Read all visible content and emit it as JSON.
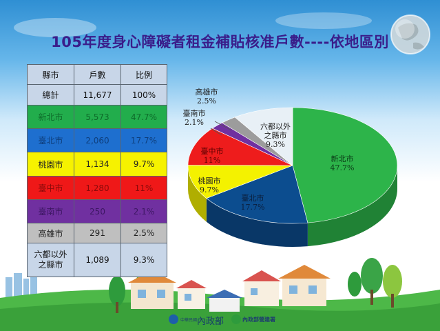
{
  "title": "105年度身心障礙者租金補貼核准戶數----依地區別",
  "table": {
    "headers": [
      "縣市",
      "戶數",
      "比例"
    ],
    "rows": [
      {
        "area": "總計",
        "count": "11,677",
        "pct": "100%"
      },
      {
        "area": "新北市",
        "count": "5,573",
        "pct": "47.7%"
      },
      {
        "area": "臺北市",
        "count": "2,060",
        "pct": "17.7%"
      },
      {
        "area": "桃園市",
        "count": "1,134",
        "pct": "9.7%"
      },
      {
        "area": "臺中市",
        "count": "1,280",
        "pct": "11%"
      },
      {
        "area": "臺南市",
        "count": "250",
        "pct": "2.1%"
      },
      {
        "area": "高雄市",
        "count": "291",
        "pct": "2.5%"
      },
      {
        "area": "六都以外之縣市",
        "area_line1": "六都以外",
        "area_line2": "之縣市",
        "count": "1,089",
        "pct": "9.3%"
      }
    ]
  },
  "chart_data": {
    "type": "pie",
    "title": "",
    "slices": [
      {
        "name": "新北市",
        "value": 47.7,
        "label": "47.7%",
        "color": "#2db44a"
      },
      {
        "name": "臺北市",
        "value": 17.7,
        "label": "17.7%",
        "color": "#0c4d8f"
      },
      {
        "name": "桃園市",
        "value": 9.7,
        "label": "9.7%",
        "color": "#f4f200"
      },
      {
        "name": "臺中市",
        "value": 11,
        "label": "11%",
        "color": "#ee1c1c"
      },
      {
        "name": "臺南市",
        "value": 2.1,
        "label": "2.1%",
        "color": "#7030a0"
      },
      {
        "name": "高雄市",
        "value": 2.5,
        "label": "2.5%",
        "color": "#9c9c9c"
      },
      {
        "name": "六都以外之縣市",
        "name_line1": "六都以外",
        "name_line2": "之縣市",
        "value": 9.3,
        "label": "9.3%",
        "color": "#e8f0f6"
      }
    ]
  },
  "footer": {
    "logo_mid": "內政部",
    "logo_right": "內政部營建署",
    "logo_left": "中華民國"
  },
  "colors": {
    "title": "#3a1d8a",
    "sky": "#2f8fd3",
    "grass": "#4db848"
  }
}
